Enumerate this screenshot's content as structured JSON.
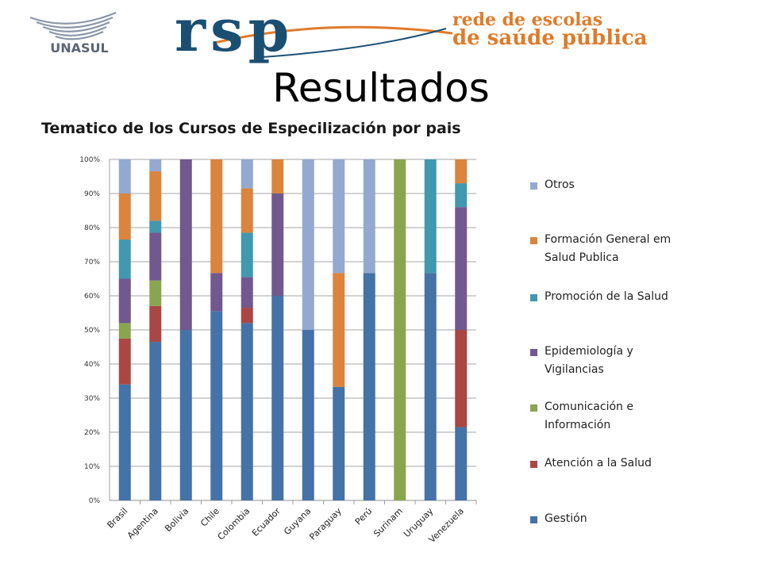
{
  "header": {
    "unasul_logo_text": "UNASUL",
    "rsp_logo_text": "rsp",
    "rsp_tagline_line1": "rede de escolas",
    "rsp_tagline_line2": "de saúde pública"
  },
  "slide": {
    "title": "Resultados"
  },
  "colors": {
    "Gestión": "#4572A7",
    "Atención a la Salud": "#AA4643",
    "Comunicación e Información": "#89A54E",
    "Epidemiología y Vigilancias": "#71588F",
    "Promoción de la Salud": "#4198AF",
    "Formación General em Salud Publica": "#DB843D",
    "Otros": "#93A9CF",
    "rsp_blue": "#1B4F72",
    "rsp_orange": "#E07B2A"
  },
  "chart_data": {
    "type": "bar",
    "stacked": true,
    "percent": true,
    "title": "Tematico de los Cursos de Especilización  por pais",
    "xlabel": "",
    "ylabel": "",
    "ylim": [
      0,
      100
    ],
    "yticks": [
      "0%",
      "10%",
      "20%",
      "30%",
      "40%",
      "50%",
      "60%",
      "70%",
      "80%",
      "90%",
      "100%"
    ],
    "grid": true,
    "legend_position": "right",
    "categories": [
      "Brasil",
      "Agentina",
      "Bolivia",
      "Chile",
      "Colombia",
      "Ecuador",
      "Guyana",
      "Paraguay",
      "Perú",
      "Surinam",
      "Uruguay",
      "Venezuela"
    ],
    "series": [
      {
        "name": "Gestión",
        "values": [
          34,
          46.5,
          50,
          55.5,
          52,
          60,
          50,
          33.3,
          66.7,
          0,
          66.7,
          21.5
        ]
      },
      {
        "name": "Atención a la Salud",
        "values": [
          13.5,
          10.5,
          0,
          0,
          4.5,
          0,
          0,
          0,
          0,
          0,
          0,
          28.5
        ]
      },
      {
        "name": "Comunicación e Información",
        "values": [
          4.5,
          7.5,
          0,
          0,
          0,
          0,
          0,
          0,
          0,
          100,
          0,
          0
        ]
      },
      {
        "name": "Epidemiología y Vigilancias",
        "values": [
          13,
          14,
          50,
          11.2,
          9,
          30,
          0,
          0,
          0,
          0,
          0,
          36
        ]
      },
      {
        "name": "Promoción de la Salud",
        "values": [
          11.5,
          3.5,
          0,
          0,
          13,
          0,
          0,
          0,
          0,
          0,
          33.3,
          7
        ]
      },
      {
        "name": "Formación General em Salud Publica",
        "values": [
          13.5,
          14.5,
          0,
          33.3,
          13,
          10,
          0,
          33.4,
          0,
          0,
          0,
          7
        ]
      },
      {
        "name": "Otros",
        "values": [
          10,
          3.5,
          0,
          0,
          8.5,
          0,
          50,
          33.3,
          33.3,
          0,
          0,
          0
        ]
      }
    ],
    "legend_order": [
      "Otros",
      "Formación General em Salud Publica",
      "Promoción de la Salud",
      "Epidemiología y Vigilancias",
      "Comunicación e Información",
      "Atención a la Salud",
      "Gestión"
    ]
  },
  "legend": {
    "items": [
      {
        "line1": "Otros",
        "line2": "",
        "color_key": "Otros"
      },
      {
        "line1": "Formación General em",
        "line2": "Salud Publica",
        "color_key": "Formación General em Salud Publica"
      },
      {
        "line1": "Promoción de la Salud",
        "line2": "",
        "color_key": "Promoción de la Salud"
      },
      {
        "line1": "Epidemiología y",
        "line2": "Vigilancias",
        "color_key": "Epidemiología y Vigilancias"
      },
      {
        "line1": "Comunicación e",
        "line2": "Información",
        "color_key": "Comunicación e Información"
      },
      {
        "line1": "Atención a la Salud",
        "line2": "",
        "color_key": "Atención a la Salud"
      },
      {
        "line1": "Gestión",
        "line2": "",
        "color_key": "Gestión"
      }
    ]
  }
}
